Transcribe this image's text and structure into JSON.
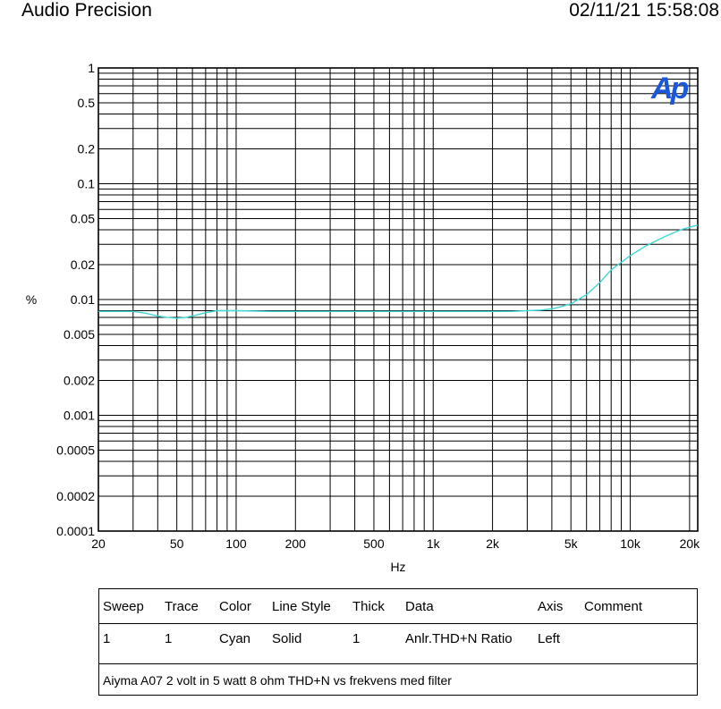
{
  "header": {
    "left": "Audio Precision",
    "right": "02/11/21 15:58:08"
  },
  "chart_data": {
    "type": "line",
    "xlabel": "Hz",
    "ylabel": "%",
    "x_scale": "log",
    "y_scale": "log",
    "xlim": [
      20,
      22000
    ],
    "ylim": [
      0.0001,
      1
    ],
    "grid": true,
    "x_ticks": [
      {
        "value": 20,
        "label": "20"
      },
      {
        "value": 50,
        "label": "50"
      },
      {
        "value": 100,
        "label": "100"
      },
      {
        "value": 200,
        "label": "200"
      },
      {
        "value": 500,
        "label": "500"
      },
      {
        "value": 1000,
        "label": "1k"
      },
      {
        "value": 2000,
        "label": "2k"
      },
      {
        "value": 5000,
        "label": "5k"
      },
      {
        "value": 10000,
        "label": "10k"
      },
      {
        "value": 20000,
        "label": "20k"
      }
    ],
    "y_ticks": [
      {
        "value": 1,
        "label": "1"
      },
      {
        "value": 0.5,
        "label": "0.5"
      },
      {
        "value": 0.2,
        "label": "0.2"
      },
      {
        "value": 0.1,
        "label": "0.1"
      },
      {
        "value": 0.05,
        "label": "0.05"
      },
      {
        "value": 0.02,
        "label": "0.02"
      },
      {
        "value": 0.01,
        "label": "0.01"
      },
      {
        "value": 0.005,
        "label": "0.005"
      },
      {
        "value": 0.002,
        "label": "0.002"
      },
      {
        "value": 0.001,
        "label": "0.001"
      },
      {
        "value": 0.0005,
        "label": "0.0005"
      },
      {
        "value": 0.0002,
        "label": "0.0002"
      },
      {
        "value": 0.0001,
        "label": "0.0001"
      }
    ],
    "series": [
      {
        "color": "#3fd6d6",
        "x": [
          20,
          25,
          30,
          35,
          40,
          45,
          50,
          55,
          60,
          70,
          80,
          90,
          100,
          150,
          200,
          300,
          500,
          700,
          1000,
          1500,
          2000,
          2500,
          3000,
          3500,
          4000,
          4500,
          5000,
          6000,
          7000,
          8000,
          10000,
          12000,
          15000,
          18000,
          22000
        ],
        "values": [
          0.0079,
          0.0079,
          0.0079,
          0.0076,
          0.0072,
          0.007,
          0.0069,
          0.007,
          0.0072,
          0.0077,
          0.008,
          0.008,
          0.008,
          0.0079,
          0.0079,
          0.0079,
          0.0079,
          0.0079,
          0.0079,
          0.0079,
          0.0079,
          0.0079,
          0.008,
          0.0081,
          0.0083,
          0.0087,
          0.0092,
          0.011,
          0.014,
          0.018,
          0.024,
          0.029,
          0.035,
          0.04,
          0.044
        ]
      }
    ]
  },
  "logo": {
    "text": "Ap",
    "color": "#1a57d9"
  },
  "legend": {
    "headers": [
      "Sweep",
      "Trace",
      "Color",
      "Line Style",
      "Thick",
      "Data",
      "Axis",
      "Comment"
    ],
    "rows": [
      [
        "1",
        "1",
        "Cyan",
        "Solid",
        "1",
        "Anlr.THD+N Ratio",
        "Left",
        ""
      ]
    ],
    "comment": "Aiyma A07 2 volt in 5 watt 8 ohm THD+N vs frekvens med filter"
  }
}
